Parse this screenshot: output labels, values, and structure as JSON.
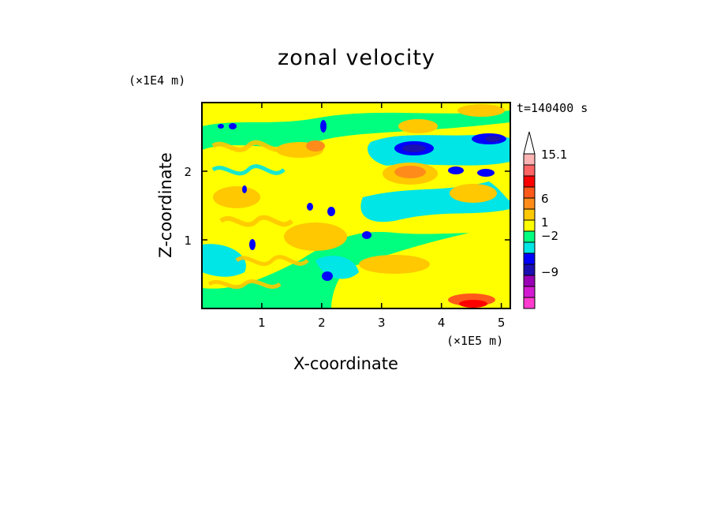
{
  "chart_data": {
    "type": "heatmap",
    "title": "zonal velocity",
    "xlabel": "X-coordinate",
    "ylabel": "Z-coordinate",
    "x_unit": "(×1E5 m)",
    "y_unit": "(×1E4 m)",
    "time_label": "t=140400 s",
    "xlim": [
      0,
      5.15
    ],
    "ylim": [
      0,
      3.0
    ],
    "x_ticks": [
      "1",
      "2",
      "3",
      "4",
      "5"
    ],
    "y_ticks": [
      "1",
      "2"
    ],
    "colorbar": {
      "labels": [
        "15.1",
        "6",
        "1",
        "−2",
        "−9"
      ],
      "colors": [
        "#ff3ccf",
        "#d21ad2",
        "#9a00b5",
        "#1a0fb0",
        "#0000ff",
        "#00e5e5",
        "#00ff7f",
        "#ffff00",
        "#ffc800",
        "#ff8c1a",
        "#ff5a1a",
        "#ff0000",
        "#ff6464",
        "#ffb4b4",
        "#ffffff"
      ]
    },
    "grid": false
  }
}
